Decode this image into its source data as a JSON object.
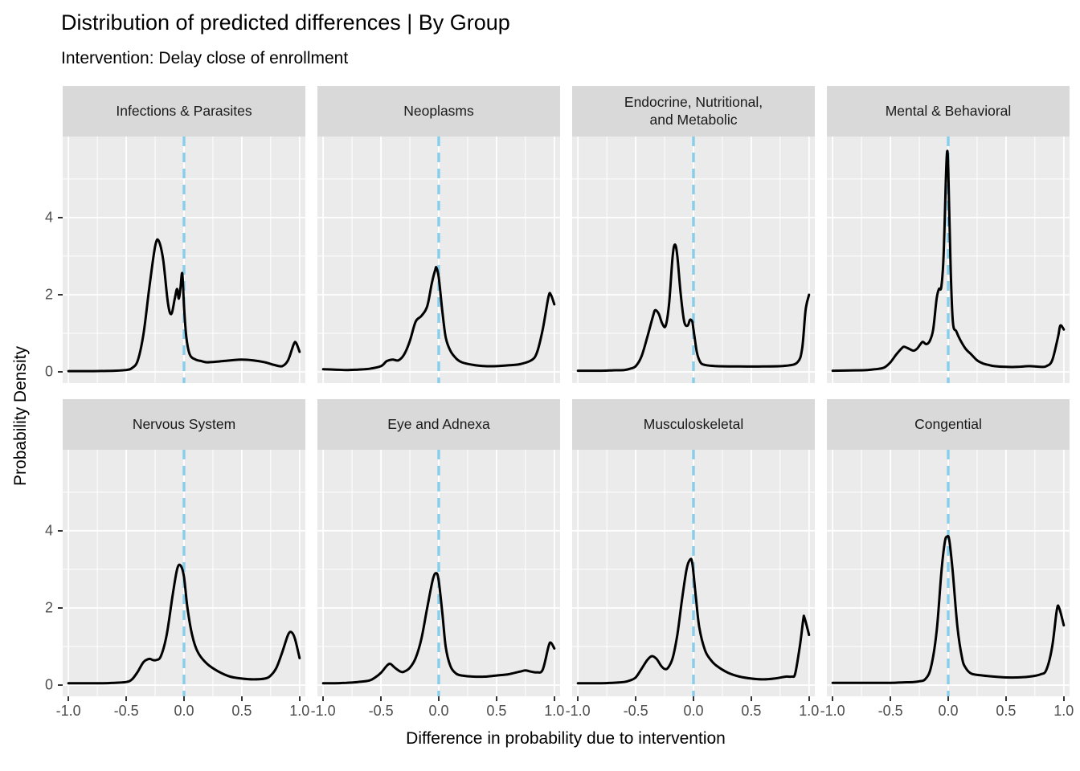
{
  "header": {
    "title": "Distribution of predicted differences | By Group",
    "subtitle": "Intervention: Delay close of enrollment"
  },
  "axes": {
    "x_label": "Difference in probability due to intervention",
    "y_label": "Probability Density",
    "x_ticks": [
      "-1.0",
      "-0.5",
      "0.0",
      "0.5",
      "1.0"
    ],
    "x_tick_values": [
      -1,
      -0.5,
      0,
      0.5,
      1
    ],
    "y_ticks": [
      "0",
      "2",
      "4"
    ],
    "y_tick_values": [
      0,
      2,
      4
    ]
  },
  "colors": {
    "panel_bg": "#EBEBEB",
    "strip_bg": "#D9D9D9",
    "gridline": "#FFFFFF",
    "curve": "#000000",
    "zero_reference_line": "#87CEEB",
    "tick_label": "#4D4D4D",
    "tick_mark": "#333333",
    "text": "#000000"
  },
  "chart_data": {
    "type": "line",
    "subtype": "faceted-density",
    "title": "Distribution of predicted differences | By Group",
    "subtitle": "Intervention: Delay close of enrollment",
    "xlabel": "Difference in probability due to intervention",
    "ylabel": "Probability Density",
    "facet_grid": {
      "rows": 2,
      "cols": 4
    },
    "xlim": [
      -1.05,
      1.05
    ],
    "ylim": [
      -0.29,
      6.1
    ],
    "x_major_gridlines": [
      -1,
      -0.5,
      0,
      0.5,
      1
    ],
    "x_minor_gridlines": [
      -0.75,
      -0.25,
      0.25,
      0.75
    ],
    "y_major_gridlines": [
      0,
      2,
      4
    ],
    "y_minor_gridlines": [
      1,
      3,
      5
    ],
    "reference_line_x": 0,
    "legend": "none",
    "facets": [
      {
        "label": "Infections & Parasites",
        "peak": {
          "x": -0.22,
          "density": 3.4
        },
        "points": [
          [
            -1.0,
            0.02
          ],
          [
            -0.8,
            0.02
          ],
          [
            -0.6,
            0.03
          ],
          [
            -0.5,
            0.05
          ],
          [
            -0.45,
            0.1
          ],
          [
            -0.4,
            0.3
          ],
          [
            -0.35,
            1.0
          ],
          [
            -0.3,
            2.2
          ],
          [
            -0.25,
            3.25
          ],
          [
            -0.22,
            3.4
          ],
          [
            -0.18,
            2.9
          ],
          [
            -0.14,
            1.8
          ],
          [
            -0.11,
            1.5
          ],
          [
            -0.08,
            1.9
          ],
          [
            -0.06,
            2.15
          ],
          [
            -0.045,
            1.9
          ],
          [
            -0.03,
            2.2
          ],
          [
            -0.015,
            2.55
          ],
          [
            0.0,
            1.7
          ],
          [
            0.02,
            0.9
          ],
          [
            0.05,
            0.45
          ],
          [
            0.1,
            0.32
          ],
          [
            0.15,
            0.28
          ],
          [
            0.2,
            0.25
          ],
          [
            0.3,
            0.27
          ],
          [
            0.4,
            0.3
          ],
          [
            0.5,
            0.32
          ],
          [
            0.6,
            0.3
          ],
          [
            0.7,
            0.25
          ],
          [
            0.78,
            0.18
          ],
          [
            0.85,
            0.15
          ],
          [
            0.9,
            0.3
          ],
          [
            0.95,
            0.72
          ],
          [
            0.97,
            0.75
          ],
          [
            1.0,
            0.52
          ]
        ]
      },
      {
        "label": "Neoplasms",
        "peak": {
          "x": -0.02,
          "density": 2.7
        },
        "points": [
          [
            -1.0,
            0.07
          ],
          [
            -0.9,
            0.06
          ],
          [
            -0.8,
            0.05
          ],
          [
            -0.7,
            0.06
          ],
          [
            -0.6,
            0.08
          ],
          [
            -0.5,
            0.15
          ],
          [
            -0.45,
            0.28
          ],
          [
            -0.4,
            0.32
          ],
          [
            -0.35,
            0.3
          ],
          [
            -0.3,
            0.45
          ],
          [
            -0.25,
            0.8
          ],
          [
            -0.2,
            1.3
          ],
          [
            -0.15,
            1.45
          ],
          [
            -0.1,
            1.7
          ],
          [
            -0.06,
            2.3
          ],
          [
            -0.03,
            2.65
          ],
          [
            -0.02,
            2.7
          ],
          [
            0.0,
            2.45
          ],
          [
            0.03,
            1.6
          ],
          [
            0.06,
            0.9
          ],
          [
            0.1,
            0.55
          ],
          [
            0.15,
            0.35
          ],
          [
            0.2,
            0.25
          ],
          [
            0.3,
            0.18
          ],
          [
            0.4,
            0.15
          ],
          [
            0.5,
            0.15
          ],
          [
            0.6,
            0.17
          ],
          [
            0.7,
            0.2
          ],
          [
            0.8,
            0.3
          ],
          [
            0.85,
            0.5
          ],
          [
            0.9,
            1.1
          ],
          [
            0.95,
            1.95
          ],
          [
            0.97,
            2.0
          ],
          [
            1.0,
            1.75
          ]
        ]
      },
      {
        "label": "Endocrine, Nutritional,\nand Metabolic",
        "peak": {
          "x": -0.16,
          "density": 3.3
        },
        "points": [
          [
            -1.0,
            0.03
          ],
          [
            -0.8,
            0.03
          ],
          [
            -0.7,
            0.04
          ],
          [
            -0.6,
            0.05
          ],
          [
            -0.55,
            0.08
          ],
          [
            -0.5,
            0.15
          ],
          [
            -0.45,
            0.4
          ],
          [
            -0.4,
            0.9
          ],
          [
            -0.35,
            1.45
          ],
          [
            -0.33,
            1.6
          ],
          [
            -0.3,
            1.5
          ],
          [
            -0.27,
            1.25
          ],
          [
            -0.24,
            1.2
          ],
          [
            -0.21,
            1.8
          ],
          [
            -0.18,
            3.0
          ],
          [
            -0.16,
            3.3
          ],
          [
            -0.14,
            3.0
          ],
          [
            -0.11,
            2.0
          ],
          [
            -0.08,
            1.3
          ],
          [
            -0.05,
            1.2
          ],
          [
            -0.03,
            1.35
          ],
          [
            -0.01,
            1.3
          ],
          [
            0.0,
            1.1
          ],
          [
            0.03,
            0.5
          ],
          [
            0.06,
            0.25
          ],
          [
            0.1,
            0.18
          ],
          [
            0.2,
            0.15
          ],
          [
            0.4,
            0.14
          ],
          [
            0.6,
            0.14
          ],
          [
            0.8,
            0.16
          ],
          [
            0.9,
            0.25
          ],
          [
            0.94,
            0.6
          ],
          [
            0.97,
            1.6
          ],
          [
            1.0,
            2.0
          ]
        ]
      },
      {
        "label": "Mental & Behavioral",
        "peak": {
          "x": -0.01,
          "density": 5.7
        },
        "points": [
          [
            -1.0,
            0.03
          ],
          [
            -0.8,
            0.04
          ],
          [
            -0.7,
            0.05
          ],
          [
            -0.6,
            0.08
          ],
          [
            -0.55,
            0.12
          ],
          [
            -0.5,
            0.25
          ],
          [
            -0.45,
            0.45
          ],
          [
            -0.4,
            0.62
          ],
          [
            -0.38,
            0.65
          ],
          [
            -0.34,
            0.6
          ],
          [
            -0.3,
            0.55
          ],
          [
            -0.27,
            0.6
          ],
          [
            -0.24,
            0.72
          ],
          [
            -0.22,
            0.78
          ],
          [
            -0.19,
            0.72
          ],
          [
            -0.16,
            0.8
          ],
          [
            -0.13,
            1.1
          ],
          [
            -0.1,
            1.9
          ],
          [
            -0.08,
            2.15
          ],
          [
            -0.06,
            2.2
          ],
          [
            -0.04,
            3.0
          ],
          [
            -0.02,
            5.0
          ],
          [
            -0.01,
            5.7
          ],
          [
            0.0,
            5.3
          ],
          [
            0.02,
            2.8
          ],
          [
            0.04,
            1.3
          ],
          [
            0.07,
            1.05
          ],
          [
            0.1,
            0.85
          ],
          [
            0.15,
            0.6
          ],
          [
            0.2,
            0.45
          ],
          [
            0.25,
            0.3
          ],
          [
            0.3,
            0.22
          ],
          [
            0.35,
            0.18
          ],
          [
            0.4,
            0.15
          ],
          [
            0.5,
            0.13
          ],
          [
            0.6,
            0.13
          ],
          [
            0.7,
            0.15
          ],
          [
            0.8,
            0.13
          ],
          [
            0.85,
            0.15
          ],
          [
            0.9,
            0.3
          ],
          [
            0.95,
            0.9
          ],
          [
            0.97,
            1.2
          ],
          [
            1.0,
            1.1
          ]
        ]
      },
      {
        "label": "Nervous System",
        "peak": {
          "x": -0.03,
          "density": 3.1
        },
        "points": [
          [
            -1.0,
            0.05
          ],
          [
            -0.9,
            0.05
          ],
          [
            -0.8,
            0.05
          ],
          [
            -0.7,
            0.05
          ],
          [
            -0.6,
            0.06
          ],
          [
            -0.5,
            0.08
          ],
          [
            -0.45,
            0.15
          ],
          [
            -0.4,
            0.35
          ],
          [
            -0.35,
            0.6
          ],
          [
            -0.3,
            0.68
          ],
          [
            -0.27,
            0.65
          ],
          [
            -0.24,
            0.65
          ],
          [
            -0.2,
            0.75
          ],
          [
            -0.15,
            1.3
          ],
          [
            -0.1,
            2.3
          ],
          [
            -0.06,
            3.0
          ],
          [
            -0.03,
            3.1
          ],
          [
            0.0,
            2.8
          ],
          [
            0.03,
            2.0
          ],
          [
            0.07,
            1.3
          ],
          [
            0.12,
            0.85
          ],
          [
            0.2,
            0.55
          ],
          [
            0.3,
            0.35
          ],
          [
            0.4,
            0.22
          ],
          [
            0.5,
            0.17
          ],
          [
            0.6,
            0.15
          ],
          [
            0.7,
            0.17
          ],
          [
            0.75,
            0.25
          ],
          [
            0.8,
            0.45
          ],
          [
            0.85,
            0.85
          ],
          [
            0.9,
            1.3
          ],
          [
            0.93,
            1.37
          ],
          [
            0.96,
            1.2
          ],
          [
            1.0,
            0.7
          ]
        ]
      },
      {
        "label": "Eye and Adnexa",
        "peak": {
          "x": -0.02,
          "density": 2.9
        },
        "points": [
          [
            -1.0,
            0.05
          ],
          [
            -0.9,
            0.05
          ],
          [
            -0.8,
            0.06
          ],
          [
            -0.7,
            0.08
          ],
          [
            -0.6,
            0.12
          ],
          [
            -0.55,
            0.2
          ],
          [
            -0.5,
            0.32
          ],
          [
            -0.45,
            0.5
          ],
          [
            -0.42,
            0.55
          ],
          [
            -0.38,
            0.45
          ],
          [
            -0.33,
            0.35
          ],
          [
            -0.3,
            0.35
          ],
          [
            -0.25,
            0.45
          ],
          [
            -0.2,
            0.7
          ],
          [
            -0.15,
            1.2
          ],
          [
            -0.1,
            2.0
          ],
          [
            -0.05,
            2.75
          ],
          [
            -0.02,
            2.9
          ],
          [
            0.0,
            2.7
          ],
          [
            0.03,
            1.9
          ],
          [
            0.06,
            1.0
          ],
          [
            0.1,
            0.5
          ],
          [
            0.15,
            0.3
          ],
          [
            0.2,
            0.25
          ],
          [
            0.3,
            0.22
          ],
          [
            0.4,
            0.22
          ],
          [
            0.5,
            0.25
          ],
          [
            0.6,
            0.28
          ],
          [
            0.7,
            0.35
          ],
          [
            0.75,
            0.38
          ],
          [
            0.8,
            0.35
          ],
          [
            0.85,
            0.33
          ],
          [
            0.9,
            0.4
          ],
          [
            0.95,
            1.0
          ],
          [
            0.97,
            1.1
          ],
          [
            1.0,
            0.95
          ]
        ]
      },
      {
        "label": "Musculoskeletal",
        "peak": {
          "x": -0.03,
          "density": 3.25
        },
        "points": [
          [
            -1.0,
            0.05
          ],
          [
            -0.9,
            0.05
          ],
          [
            -0.8,
            0.05
          ],
          [
            -0.7,
            0.06
          ],
          [
            -0.6,
            0.08
          ],
          [
            -0.55,
            0.12
          ],
          [
            -0.5,
            0.2
          ],
          [
            -0.45,
            0.42
          ],
          [
            -0.4,
            0.65
          ],
          [
            -0.36,
            0.75
          ],
          [
            -0.32,
            0.68
          ],
          [
            -0.28,
            0.5
          ],
          [
            -0.25,
            0.42
          ],
          [
            -0.22,
            0.45
          ],
          [
            -0.18,
            0.7
          ],
          [
            -0.14,
            1.3
          ],
          [
            -0.1,
            2.2
          ],
          [
            -0.06,
            3.0
          ],
          [
            -0.03,
            3.25
          ],
          [
            -0.01,
            3.15
          ],
          [
            0.02,
            2.3
          ],
          [
            0.05,
            1.5
          ],
          [
            0.1,
            0.9
          ],
          [
            0.15,
            0.65
          ],
          [
            0.2,
            0.5
          ],
          [
            0.3,
            0.32
          ],
          [
            0.4,
            0.22
          ],
          [
            0.5,
            0.17
          ],
          [
            0.6,
            0.15
          ],
          [
            0.7,
            0.17
          ],
          [
            0.8,
            0.22
          ],
          [
            0.85,
            0.22
          ],
          [
            0.88,
            0.3
          ],
          [
            0.92,
            1.0
          ],
          [
            0.95,
            1.7
          ],
          [
            0.96,
            1.75
          ],
          [
            1.0,
            1.3
          ]
        ]
      },
      {
        "label": "Congential",
        "peak": {
          "x": -0.01,
          "density": 3.85
        },
        "points": [
          [
            -1.0,
            0.06
          ],
          [
            -0.9,
            0.06
          ],
          [
            -0.8,
            0.06
          ],
          [
            -0.7,
            0.06
          ],
          [
            -0.6,
            0.06
          ],
          [
            -0.5,
            0.06
          ],
          [
            -0.4,
            0.07
          ],
          [
            -0.3,
            0.08
          ],
          [
            -0.25,
            0.1
          ],
          [
            -0.2,
            0.15
          ],
          [
            -0.15,
            0.45
          ],
          [
            -0.1,
            1.4
          ],
          [
            -0.06,
            2.9
          ],
          [
            -0.03,
            3.7
          ],
          [
            -0.01,
            3.85
          ],
          [
            0.01,
            3.75
          ],
          [
            0.04,
            2.9
          ],
          [
            0.08,
            1.5
          ],
          [
            0.12,
            0.7
          ],
          [
            0.15,
            0.45
          ],
          [
            0.2,
            0.3
          ],
          [
            0.3,
            0.25
          ],
          [
            0.4,
            0.22
          ],
          [
            0.5,
            0.2
          ],
          [
            0.6,
            0.2
          ],
          [
            0.7,
            0.22
          ],
          [
            0.8,
            0.28
          ],
          [
            0.85,
            0.4
          ],
          [
            0.9,
            1.0
          ],
          [
            0.94,
            1.95
          ],
          [
            0.96,
            2.0
          ],
          [
            1.0,
            1.55
          ]
        ]
      }
    ]
  }
}
